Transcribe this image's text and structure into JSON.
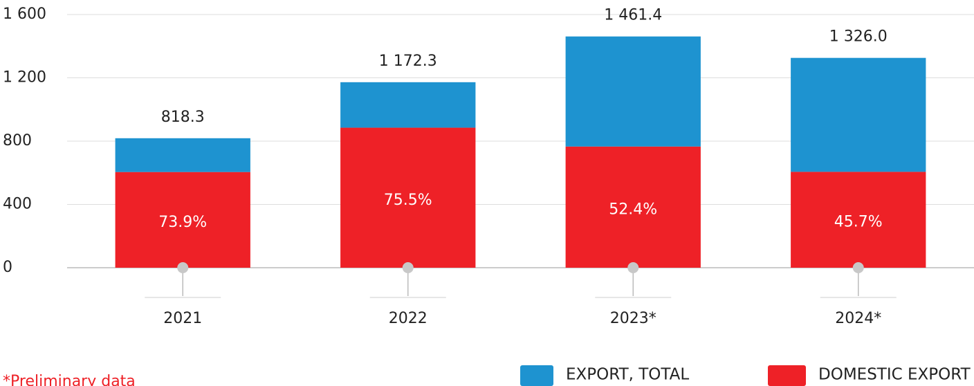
{
  "chart_data": {
    "type": "stacked_bar",
    "categories": [
      "2021",
      "2022",
      "2023*",
      "2024*"
    ],
    "series": [
      {
        "name": "DOMESTIC EXPORT",
        "color": "#ee2127",
        "values": [
          604.7,
          885.0,
          765.8,
          606.0
        ]
      },
      {
        "name": "EXPORT, TOTAL",
        "color": "#1e93d0",
        "values": [
          213.6,
          287.3,
          695.6,
          720.0
        ]
      }
    ],
    "totals": [
      818.3,
      1172.3,
      1461.4,
      1326.0
    ],
    "total_labels": [
      "818.3",
      "1 172.3",
      "1 461.4",
      "1 326.0"
    ],
    "shares": [
      73.9,
      75.5,
      52.4,
      45.7
    ],
    "share_labels": [
      "73.9%",
      "75.5%",
      "52.4%",
      "45.7%"
    ],
    "ylim": [
      0,
      1600
    ],
    "yticks": [
      0,
      400,
      800,
      {
        "value": 1200,
        "label": "1 200"
      },
      {
        "value": 1600,
        "label": "1 600"
      }
    ],
    "grid": true,
    "note": "*Preliminary data"
  }
}
